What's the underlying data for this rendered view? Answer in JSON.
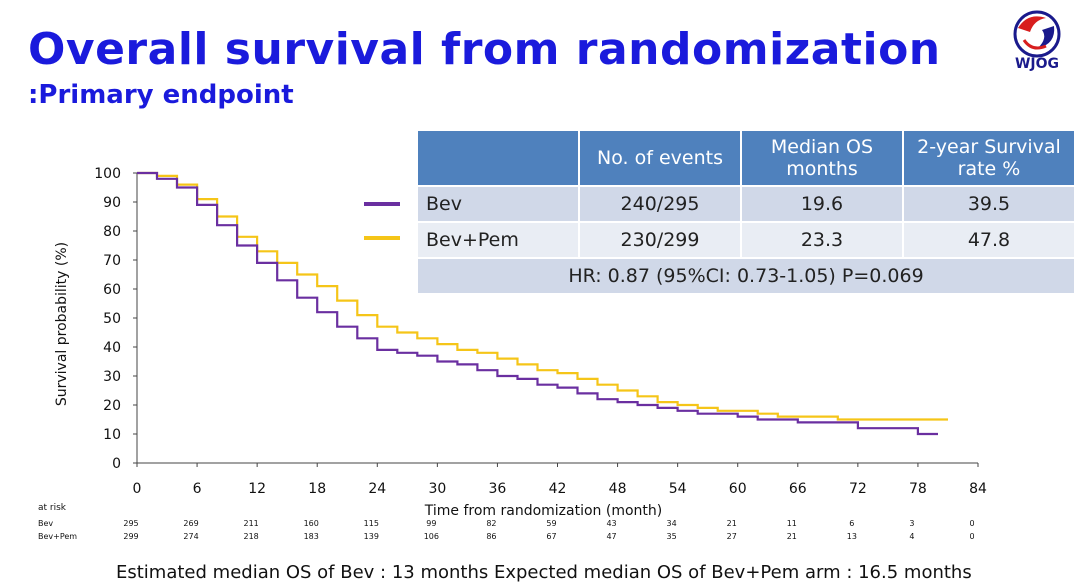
{
  "title": "Overall survival from randomization",
  "subtitle": ":Primary endpoint",
  "logo_text": "WJOG",
  "colors": {
    "bev": "#6a2fa0",
    "bevpem": "#f5c518",
    "title": "#1a1adc",
    "table_header": "#4f81bd"
  },
  "table": {
    "headers": [
      "",
      "No. of events",
      "Median OS months",
      "2-year Survival rate %"
    ],
    "rows": [
      {
        "group": "Bev",
        "events": "240/295",
        "median": "19.6",
        "rate": "39.5"
      },
      {
        "group": "Bev+Pem",
        "events": "230/299",
        "median": "23.3",
        "rate": "47.8"
      }
    ],
    "hr": "HR: 0.87 (95%CI: 0.73-1.05)  P=0.069"
  },
  "footnote": "Estimated median OS of Bev : 13 months  Expected median OS of Bev+Pem arm : 16.5 months",
  "chart_data": {
    "type": "line",
    "title": "Overall survival from randomization",
    "xlabel": "Time from randomization (month)",
    "ylabel": "Survival probability (%)",
    "xlim": [
      0,
      84
    ],
    "ylim": [
      0,
      100
    ],
    "xticks": [
      0,
      6,
      12,
      18,
      24,
      30,
      36,
      42,
      48,
      54,
      60,
      66,
      72,
      78,
      84
    ],
    "yticks": [
      0,
      10,
      20,
      30,
      40,
      50,
      60,
      70,
      80,
      90,
      100
    ],
    "grid": false,
    "series": [
      {
        "name": "Bev",
        "color": "#6a2fa0",
        "x": [
          0,
          2,
          4,
          6,
          8,
          10,
          12,
          14,
          16,
          18,
          20,
          22,
          24,
          26,
          28,
          30,
          32,
          34,
          36,
          38,
          40,
          42,
          44,
          46,
          48,
          50,
          52,
          54,
          56,
          58,
          60,
          62,
          64,
          66,
          68,
          70,
          72,
          74,
          76,
          78,
          80
        ],
        "y": [
          100,
          98,
          95,
          89,
          82,
          75,
          69,
          63,
          57,
          52,
          47,
          43,
          39,
          38,
          37,
          35,
          34,
          32,
          30,
          29,
          27,
          26,
          24,
          22,
          21,
          20,
          19,
          18,
          17,
          17,
          16,
          15,
          15,
          14,
          14,
          14,
          12,
          12,
          12,
          10,
          10
        ]
      },
      {
        "name": "Bev+Pem",
        "color": "#f5c518",
        "x": [
          0,
          2,
          4,
          6,
          8,
          10,
          12,
          14,
          16,
          18,
          20,
          22,
          24,
          26,
          28,
          30,
          32,
          34,
          36,
          38,
          40,
          42,
          44,
          46,
          48,
          50,
          52,
          54,
          56,
          58,
          60,
          62,
          64,
          66,
          68,
          70,
          72,
          74,
          76,
          78,
          81
        ],
        "y": [
          100,
          99,
          96,
          91,
          85,
          78,
          73,
          69,
          65,
          61,
          56,
          51,
          47,
          45,
          43,
          41,
          39,
          38,
          36,
          34,
          32,
          31,
          29,
          27,
          25,
          23,
          21,
          20,
          19,
          18,
          18,
          17,
          16,
          16,
          16,
          15,
          15,
          15,
          15,
          15,
          15
        ]
      }
    ],
    "at_risk": {
      "label": "at risk",
      "times": [
        0,
        6,
        12,
        18,
        24,
        30,
        36,
        42,
        48,
        54,
        60,
        66,
        72,
        78,
        84
      ],
      "rows": [
        {
          "name": "Bev",
          "values": [
            "295",
            "269",
            "211",
            "160",
            "115",
            "99",
            "82",
            "59",
            "43",
            "34",
            "21",
            "11",
            "6",
            "3",
            "0"
          ]
        },
        {
          "name": "Bev+Pem",
          "values": [
            "299",
            "274",
            "218",
            "183",
            "139",
            "106",
            "86",
            "67",
            "47",
            "35",
            "27",
            "21",
            "13",
            "4",
            "0"
          ]
        }
      ]
    }
  }
}
